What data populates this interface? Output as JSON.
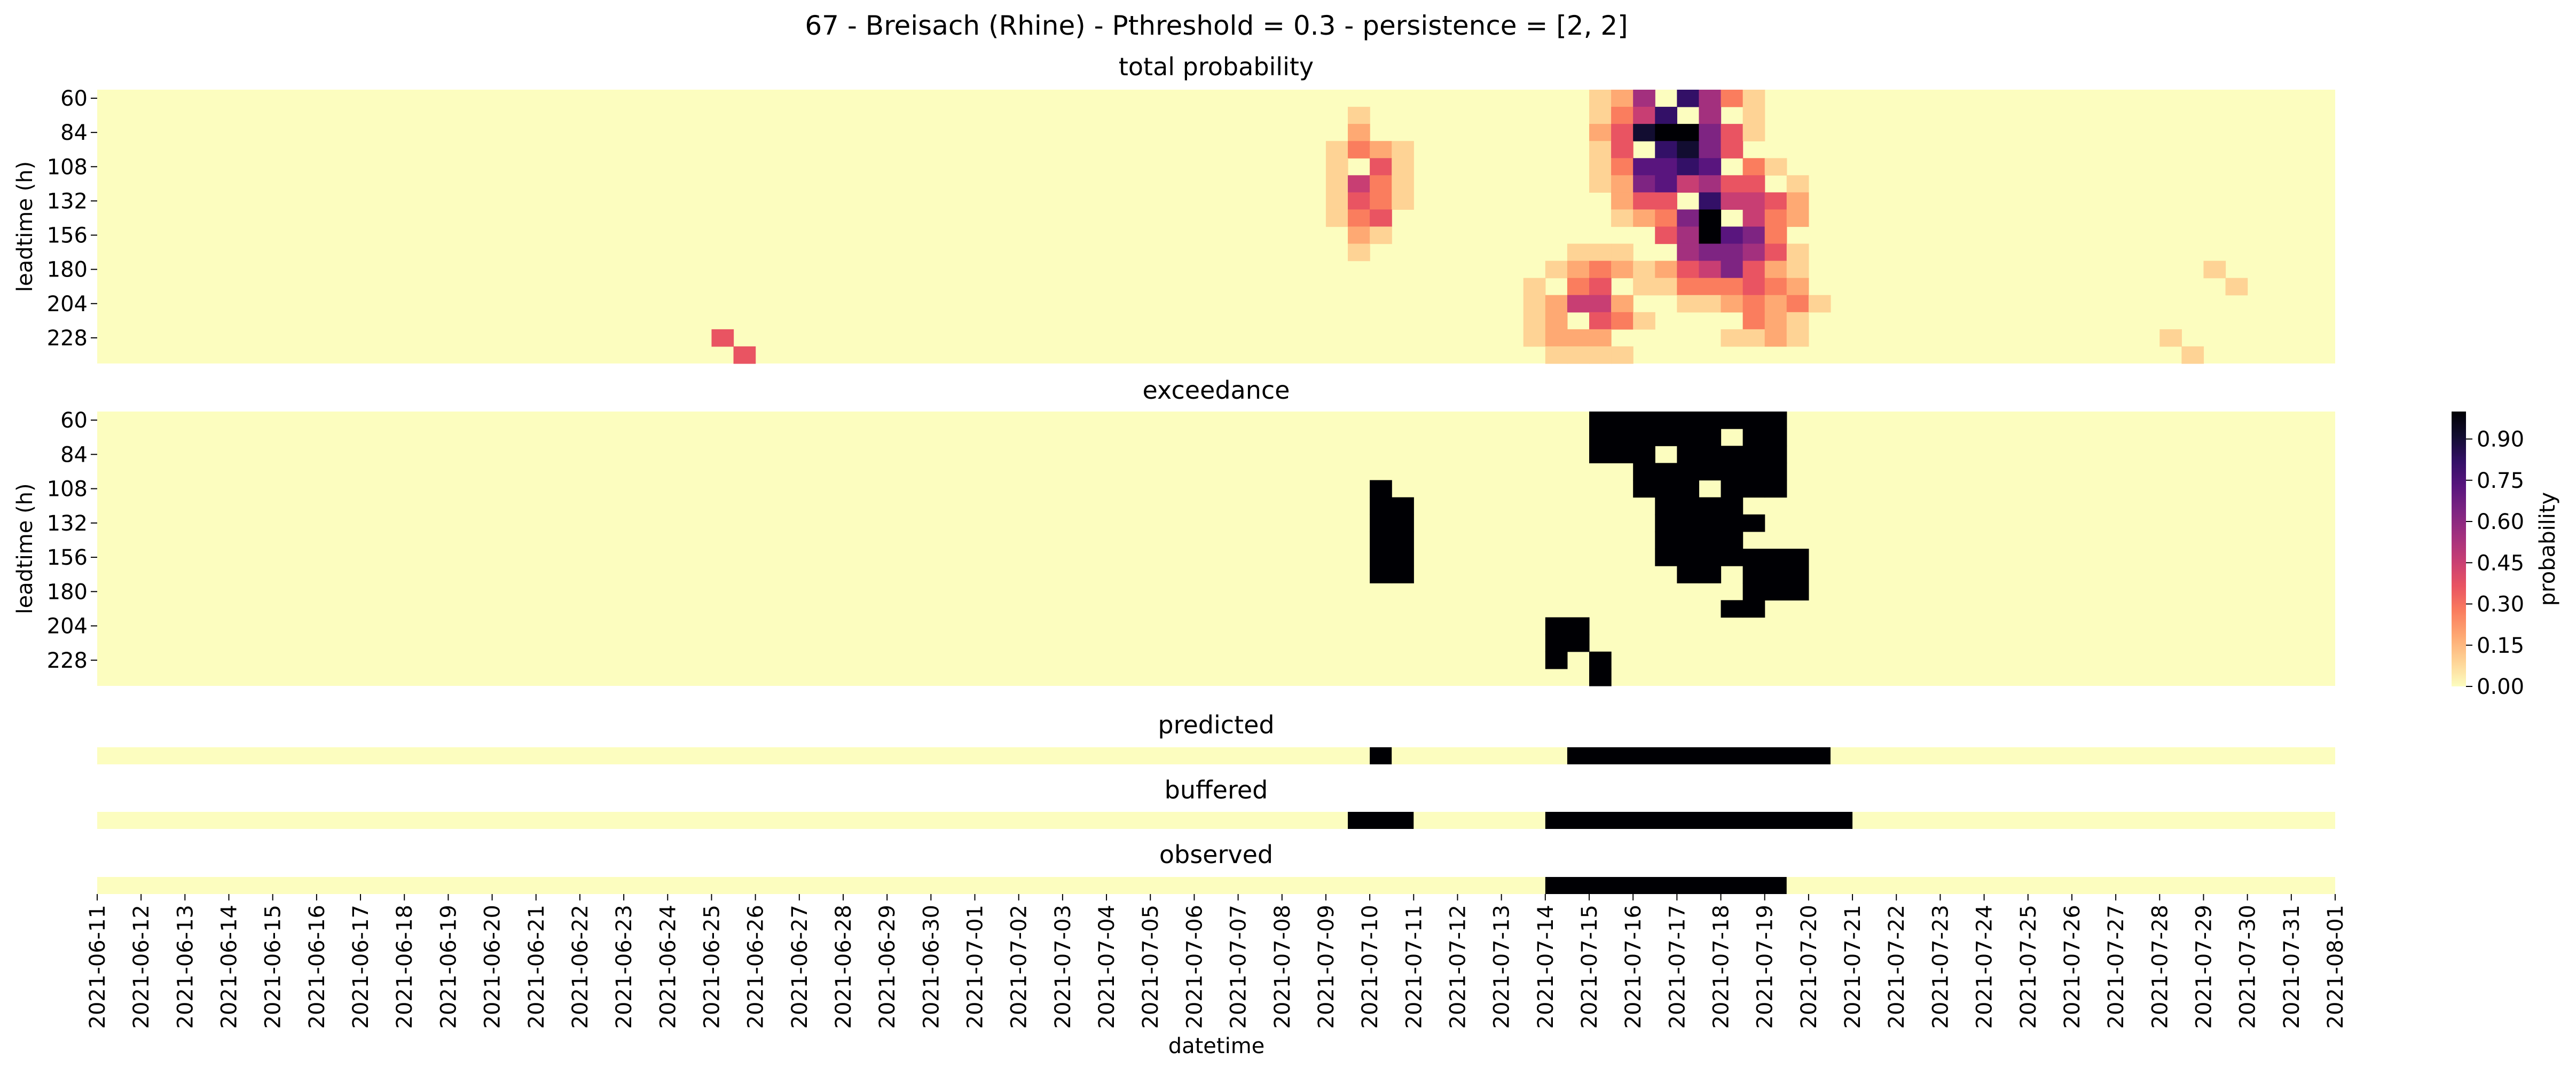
{
  "figure": {
    "title": "67 - Breisach (Rhine) - Pthreshold = 0.3 - persistence = [2, 2]"
  },
  "colors": {
    "scale": [
      "#fcfdbf",
      "#fed395",
      "#fea973",
      "#fa7d5e",
      "#e95462",
      "#c83e73",
      "#a3307e",
      "#7e2482",
      "#59157e",
      "#331067",
      "#120d31",
      "#000004"
    ],
    "binary_off": "#fcfdbf",
    "binary_on": "#000004"
  },
  "chart_data": {
    "x": {
      "label": "datetime",
      "ticks": [
        "2021-06-11",
        "2021-06-12",
        "2021-06-13",
        "2021-06-14",
        "2021-06-15",
        "2021-06-16",
        "2021-06-17",
        "2021-06-18",
        "2021-06-19",
        "2021-06-20",
        "2021-06-21",
        "2021-06-22",
        "2021-06-23",
        "2021-06-24",
        "2021-06-25",
        "2021-06-26",
        "2021-06-27",
        "2021-06-28",
        "2021-06-29",
        "2021-06-30",
        "2021-07-01",
        "2021-07-02",
        "2021-07-03",
        "2021-07-04",
        "2021-07-05",
        "2021-07-06",
        "2021-07-07",
        "2021-07-08",
        "2021-07-09",
        "2021-07-10",
        "2021-07-11",
        "2021-07-12",
        "2021-07-13",
        "2021-07-14",
        "2021-07-15",
        "2021-07-16",
        "2021-07-17",
        "2021-07-18",
        "2021-07-19",
        "2021-07-20",
        "2021-07-21",
        "2021-07-22",
        "2021-07-23",
        "2021-07-24",
        "2021-07-25",
        "2021-07-26",
        "2021-07-27",
        "2021-07-28",
        "2021-07-29",
        "2021-07-30",
        "2021-07-31",
        "2021-08-01"
      ],
      "range": [
        "2021-06-11",
        "2021-08-01"
      ],
      "step_hours": 12
    },
    "y": {
      "label": "leadtime (h)",
      "ticks": [
        60,
        84,
        108,
        132,
        156,
        180,
        204,
        228
      ],
      "range": [
        60,
        240
      ],
      "step_hours": 12
    },
    "colorbar": {
      "label": "probability",
      "ticks": [
        "0.00",
        "0.15",
        "0.30",
        "0.45",
        "0.60",
        "0.75",
        "0.90"
      ],
      "range": [
        0,
        1
      ]
    },
    "panels": [
      {
        "type": "heatmap",
        "title": "total probability",
        "blobs": [
          {
            "center": [
              "2021-07-10",
              120
            ],
            "spread_days": 0.6,
            "spread_hours": 36,
            "peak": 0.42
          },
          {
            "center": [
              "2021-07-17",
              90
            ],
            "spread_days": 1.2,
            "spread_hours": 45,
            "peak": 1.0
          },
          {
            "center": [
              "2021-07-18",
              150
            ],
            "spread_days": 1.3,
            "spread_hours": 40,
            "peak": 0.8
          },
          {
            "center": [
              "2021-07-15",
              204
            ],
            "spread_days": 1.2,
            "spread_hours": 30,
            "peak": 0.35
          },
          {
            "center": [
              "2021-07-19",
              200
            ],
            "spread_days": 1.0,
            "spread_hours": 30,
            "peak": 0.3
          }
        ],
        "spots": [
          {
            "date": "2021-06-25",
            "leadtime": 228,
            "value": 0.4
          },
          {
            "date": "2021-06-25T12",
            "leadtime": 240,
            "value": 0.4
          },
          {
            "date": "2021-07-29",
            "leadtime": 180,
            "value": 0.1
          },
          {
            "date": "2021-07-29T12",
            "leadtime": 192,
            "value": 0.12
          },
          {
            "date": "2021-07-28",
            "leadtime": 228,
            "value": 0.1
          },
          {
            "date": "2021-07-28T12",
            "leadtime": 240,
            "value": 0.12
          }
        ]
      },
      {
        "type": "heatmap",
        "title": "exceedance",
        "exceed_regions": [
          {
            "from": "2021-07-15",
            "to": "2021-07-19T12",
            "leadtime_min": 60,
            "leadtime_max": 84
          },
          {
            "from": "2021-07-16",
            "to": "2021-07-19T12",
            "leadtime_min": 84,
            "leadtime_max": 108
          },
          {
            "from": "2021-07-16T12",
            "to": "2021-07-19",
            "leadtime_min": 108,
            "leadtime_max": 156
          },
          {
            "from": "2021-07-17",
            "to": "2021-07-20",
            "leadtime_min": 156,
            "leadtime_max": 180
          },
          {
            "from": "2021-07-18",
            "to": "2021-07-19",
            "leadtime_min": 180,
            "leadtime_max": 192
          },
          {
            "from": "2021-07-14",
            "to": "2021-07-15",
            "leadtime_min": 204,
            "leadtime_max": 228
          },
          {
            "from": "2021-07-15",
            "to": "2021-07-15T12",
            "leadtime_min": 228,
            "leadtime_max": 240
          },
          {
            "from": "2021-07-10",
            "to": "2021-07-11",
            "leadtime_min": 108,
            "leadtime_max": 168
          }
        ]
      },
      {
        "type": "heatmap",
        "title": "predicted",
        "on": [
          [
            "2021-07-10",
            "2021-07-10T12"
          ],
          [
            "2021-07-14T12",
            "2021-07-20T12"
          ]
        ]
      },
      {
        "type": "heatmap",
        "title": "buffered",
        "on": [
          [
            "2021-07-09T12",
            "2021-07-11"
          ],
          [
            "2021-07-14",
            "2021-07-21"
          ]
        ]
      },
      {
        "type": "heatmap",
        "title": "observed",
        "on": [
          [
            "2021-07-14",
            "2021-07-19T12"
          ]
        ]
      }
    ]
  }
}
